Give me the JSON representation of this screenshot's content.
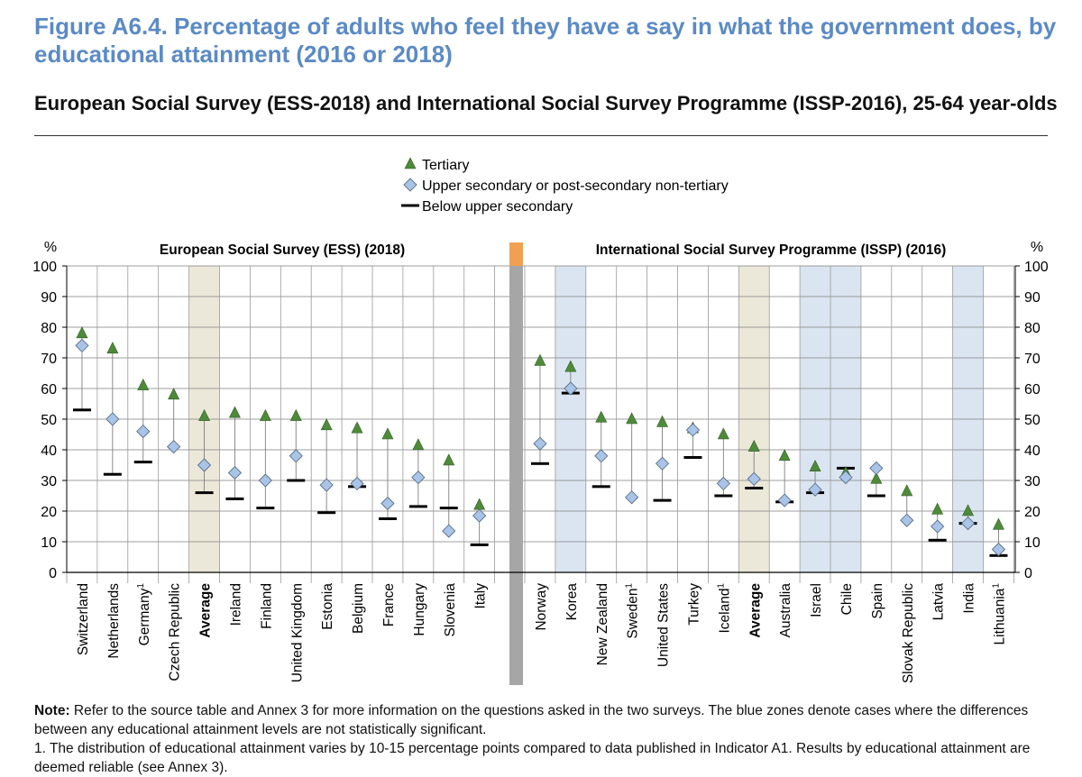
{
  "title": "Figure A6.4. Percentage of adults who feel they have a say in what the government does, by educational attainment (2016 or 2018)",
  "subtitle": "European Social Survey (ESS-2018) and International Social Survey Programme (ISSP-2016), 25-64 year-olds",
  "notes": {
    "note_label": "Note:",
    "note_text": " Refer to the source table and Annex 3 for more information on the questions asked in the two surveys. The blue zones denote cases where the differences between any educational attainment levels are not statistically significant.",
    "footnote": "1. The distribution of educational attainment varies by 10-15 percentage points compared to data published in Indicator A1. Results by educational attainment are deemed reliable (see Annex 3)."
  },
  "colors": {
    "title": "#5b8ac6",
    "tertiary": "#4f8a3a",
    "upper_secondary": "#a9c4e6",
    "below": "#000000",
    "highlight_blue": "#dbe5f1",
    "highlight_average": "#ece8d9",
    "separator_gray": "#a6a6a6",
    "separator_orange": "#f0a050"
  },
  "chart_data": {
    "type": "scatter",
    "y_unit": "%",
    "ylim": [
      0,
      100
    ],
    "yticks": [
      0,
      10,
      20,
      30,
      40,
      50,
      60,
      70,
      80,
      90,
      100
    ],
    "grid": true,
    "legend_position": "top-center",
    "legend": [
      {
        "key": "tertiary",
        "label": "Tertiary",
        "marker": "triangle"
      },
      {
        "key": "upper_secondary",
        "label": "Upper secondary or post-secondary non-tertiary",
        "marker": "diamond"
      },
      {
        "key": "below",
        "label": "Below upper secondary",
        "marker": "dash"
      }
    ],
    "panels": [
      {
        "label": "European Social Survey (ESS) (2018)",
        "categories": [
          {
            "name": "Switzerland",
            "tertiary": 78,
            "upper_secondary": 74,
            "below": 53
          },
          {
            "name": "Netherlands",
            "tertiary": 73,
            "upper_secondary": 50,
            "below": 32
          },
          {
            "name": "Germany",
            "footnote": "1",
            "tertiary": 61,
            "upper_secondary": 46,
            "below": 36
          },
          {
            "name": "Czech Republic",
            "tertiary": 58,
            "upper_secondary": 41
          },
          {
            "name": "Average",
            "bold": true,
            "highlight": "average",
            "tertiary": 51,
            "upper_secondary": 35,
            "below": 26
          },
          {
            "name": "Ireland",
            "tertiary": 52,
            "upper_secondary": 32.5,
            "below": 24
          },
          {
            "name": "Finland",
            "tertiary": 51,
            "upper_secondary": 30,
            "below": 21
          },
          {
            "name": "United Kingdom",
            "tertiary": 51,
            "upper_secondary": 38,
            "below": 30
          },
          {
            "name": "Estonia",
            "tertiary": 48,
            "upper_secondary": 28.5,
            "below": 19.5
          },
          {
            "name": "Belgium",
            "tertiary": 47,
            "upper_secondary": 29,
            "below": 28
          },
          {
            "name": "France",
            "tertiary": 45,
            "upper_secondary": 22.5,
            "below": 17.5
          },
          {
            "name": "Hungary",
            "tertiary": 41.5,
            "upper_secondary": 31,
            "below": 21.5
          },
          {
            "name": "Slovenia",
            "tertiary": 36.5,
            "upper_secondary": 13.5,
            "below": 21
          },
          {
            "name": "Italy",
            "tertiary": 22,
            "upper_secondary": 18.5,
            "below": 9
          }
        ]
      },
      {
        "label": "International Social Survey Programme (ISSP) (2016)",
        "categories": [
          {
            "name": "Norway",
            "tertiary": 69,
            "upper_secondary": 42,
            "below": 35.5
          },
          {
            "name": "Korea",
            "highlight": "blue",
            "tertiary": 67,
            "upper_secondary": 60,
            "below": 58.5
          },
          {
            "name": "New Zealand",
            "tertiary": 50.5,
            "upper_secondary": 38,
            "below": 28
          },
          {
            "name": "Sweden",
            "footnote": "1",
            "tertiary": 50,
            "upper_secondary": 24.5
          },
          {
            "name": "United States",
            "tertiary": 49,
            "upper_secondary": 35.5,
            "below": 23.5
          },
          {
            "name": "Turkey",
            "tertiary": 47,
            "upper_secondary": 46.5,
            "below": 37.5
          },
          {
            "name": "Iceland",
            "footnote": "1",
            "tertiary": 45,
            "upper_secondary": 29,
            "below": 25
          },
          {
            "name": "Average",
            "bold": true,
            "highlight": "average",
            "tertiary": 41,
            "upper_secondary": 30.5,
            "below": 27.5
          },
          {
            "name": "Australia",
            "tertiary": 38,
            "upper_secondary": 23.5,
            "below": 23
          },
          {
            "name": "Israel",
            "highlight": "blue",
            "tertiary": 34.5,
            "upper_secondary": 27,
            "below": 26
          },
          {
            "name": "Chile",
            "highlight": "blue",
            "tertiary": 32.5,
            "upper_secondary": 31,
            "below": 34
          },
          {
            "name": "Spain",
            "tertiary": 30.5,
            "upper_secondary": 34,
            "below": 25
          },
          {
            "name": "Slovak Republic",
            "tertiary": 26.5,
            "upper_secondary": 17
          },
          {
            "name": "Latvia",
            "tertiary": 20.5,
            "upper_secondary": 15,
            "below": 10.5
          },
          {
            "name": "India",
            "highlight": "blue",
            "tertiary": 20,
            "upper_secondary": 16,
            "below": 16
          },
          {
            "name": "Lithuania",
            "footnote": "1",
            "tertiary": 15.5,
            "upper_secondary": 7.5,
            "below": 5.5
          }
        ]
      }
    ]
  }
}
